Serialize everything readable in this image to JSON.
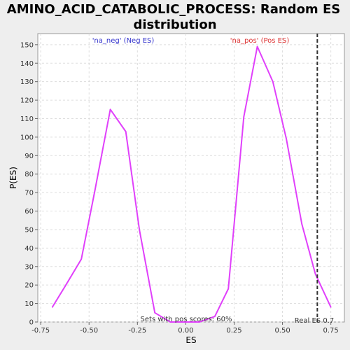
{
  "chart_data": {
    "type": "line",
    "title_line1": "AMINO_ACID_CATABOLIC_PROCESS: Random ES",
    "title_line2": "distribution",
    "xlabel": "ES",
    "ylabel": "P(ES)",
    "xlim": [
      -0.765,
      0.82
    ],
    "ylim": [
      0,
      156
    ],
    "x_ticks": [
      -0.75,
      -0.5,
      -0.25,
      0.0,
      0.25,
      0.5,
      0.75
    ],
    "x_tick_labels": [
      "-0.75",
      "-0.50",
      "-0.25",
      "0.00",
      "0.25",
      "0.50",
      "0.75"
    ],
    "y_ticks": [
      0,
      10,
      20,
      30,
      40,
      50,
      60,
      70,
      80,
      90,
      100,
      110,
      120,
      130,
      140,
      150
    ],
    "y_tick_labels": [
      "0",
      "10",
      "20",
      "30",
      "40",
      "50",
      "60",
      "70",
      "80",
      "90",
      "100",
      "110",
      "120",
      "130",
      "140",
      "150"
    ],
    "grid": true,
    "series": [
      {
        "color": "#e040fb",
        "x": [
          -0.69,
          -0.62,
          -0.54,
          -0.47,
          -0.39,
          -0.31,
          -0.24,
          -0.16,
          -0.08,
          0.0,
          0.07,
          0.15,
          0.22,
          0.3,
          0.37,
          0.45,
          0.52,
          0.6,
          0.67,
          0.75
        ],
        "y": [
          8,
          20,
          34,
          71,
          115,
          103,
          50,
          5,
          0,
          0,
          0,
          3,
          18,
          111,
          149,
          130,
          99,
          53,
          26,
          8
        ]
      }
    ],
    "real_es": {
      "x": 0.68,
      "label": "Real ES 0.7"
    },
    "annotations": {
      "neg_label": "'na_neg' (Neg ES)",
      "pos_label": "'na_pos' (Pos ES)",
      "sets_with_pos": "Sets with pos scores: 60%"
    },
    "colors": {
      "background": "#eeeeee",
      "plot_bg": "#ffffff",
      "line": "#e040fb",
      "neg_text": "#3333cc",
      "pos_text": "#dd3333",
      "grid": "#dddddd"
    }
  }
}
